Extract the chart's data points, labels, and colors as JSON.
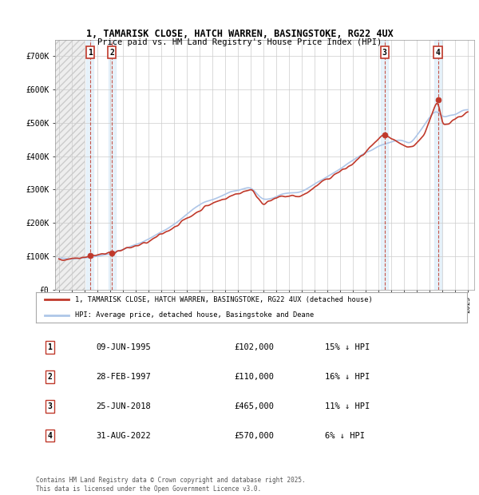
{
  "title_line1": "1, TAMARISK CLOSE, HATCH WARREN, BASINGSTOKE, RG22 4UX",
  "title_line2": "Price paid vs. HM Land Registry's House Price Index (HPI)",
  "ylim": [
    0,
    750000
  ],
  "yticks": [
    0,
    100000,
    200000,
    300000,
    400000,
    500000,
    600000,
    700000
  ],
  "ytick_labels": [
    "£0",
    "£100K",
    "£200K",
    "£300K",
    "£400K",
    "£500K",
    "£600K",
    "£700K"
  ],
  "xlim_start": 1992.7,
  "xlim_end": 2025.5,
  "hpi_color": "#aec6e8",
  "price_color": "#c0392b",
  "bg_color": "#ffffff",
  "grid_color": "#cccccc",
  "sale_points": [
    {
      "date_num": 1995.44,
      "price": 102000,
      "label": "1"
    },
    {
      "date_num": 1997.16,
      "price": 110000,
      "label": "2"
    },
    {
      "date_num": 2018.48,
      "price": 465000,
      "label": "3"
    },
    {
      "date_num": 2022.66,
      "price": 570000,
      "label": "4"
    }
  ],
  "legend_price_label": "1, TAMARISK CLOSE, HATCH WARREN, BASINGSTOKE, RG22 4UX (detached house)",
  "legend_hpi_label": "HPI: Average price, detached house, Basingstoke and Deane",
  "table_rows": [
    {
      "num": "1",
      "date": "09-JUN-1995",
      "price": "£102,000",
      "hpi": "15% ↓ HPI"
    },
    {
      "num": "2",
      "date": "28-FEB-1997",
      "price": "£110,000",
      "hpi": "16% ↓ HPI"
    },
    {
      "num": "3",
      "date": "25-JUN-2018",
      "price": "£465,000",
      "hpi": "11% ↓ HPI"
    },
    {
      "num": "4",
      "date": "31-AUG-2022",
      "price": "£570,000",
      "hpi": "6% ↓ HPI"
    }
  ],
  "footnote": "Contains HM Land Registry data © Crown copyright and database right 2025.\nThis data is licensed under the Open Government Licence v3.0.",
  "hpi_anchors": [
    [
      1993.0,
      92000
    ],
    [
      1995.0,
      96000
    ],
    [
      1997.0,
      106000
    ],
    [
      2000.0,
      150000
    ],
    [
      2002.0,
      195000
    ],
    [
      2004.0,
      255000
    ],
    [
      2006.0,
      285000
    ],
    [
      2008.0,
      310000
    ],
    [
      2009.0,
      265000
    ],
    [
      2010.5,
      288000
    ],
    [
      2012.0,
      292000
    ],
    [
      2014.0,
      338000
    ],
    [
      2016.0,
      388000
    ],
    [
      2018.0,
      430000
    ],
    [
      2019.5,
      450000
    ],
    [
      2020.5,
      435000
    ],
    [
      2021.5,
      490000
    ],
    [
      2022.5,
      545000
    ],
    [
      2023.0,
      515000
    ],
    [
      2024.0,
      525000
    ],
    [
      2025.0,
      545000
    ]
  ],
  "price_anchors": [
    [
      1993.0,
      88000
    ],
    [
      1995.44,
      102000
    ],
    [
      1997.16,
      110000
    ],
    [
      2000.0,
      142000
    ],
    [
      2002.0,
      188000
    ],
    [
      2004.5,
      250000
    ],
    [
      2006.0,
      274000
    ],
    [
      2008.0,
      302000
    ],
    [
      2009.0,
      257000
    ],
    [
      2010.5,
      280000
    ],
    [
      2012.0,
      280000
    ],
    [
      2014.0,
      332000
    ],
    [
      2016.0,
      376000
    ],
    [
      2018.48,
      465000
    ],
    [
      2019.5,
      440000
    ],
    [
      2020.5,
      425000
    ],
    [
      2021.5,
      458000
    ],
    [
      2022.66,
      570000
    ],
    [
      2023.0,
      492000
    ],
    [
      2024.0,
      512000
    ],
    [
      2025.0,
      532000
    ]
  ]
}
